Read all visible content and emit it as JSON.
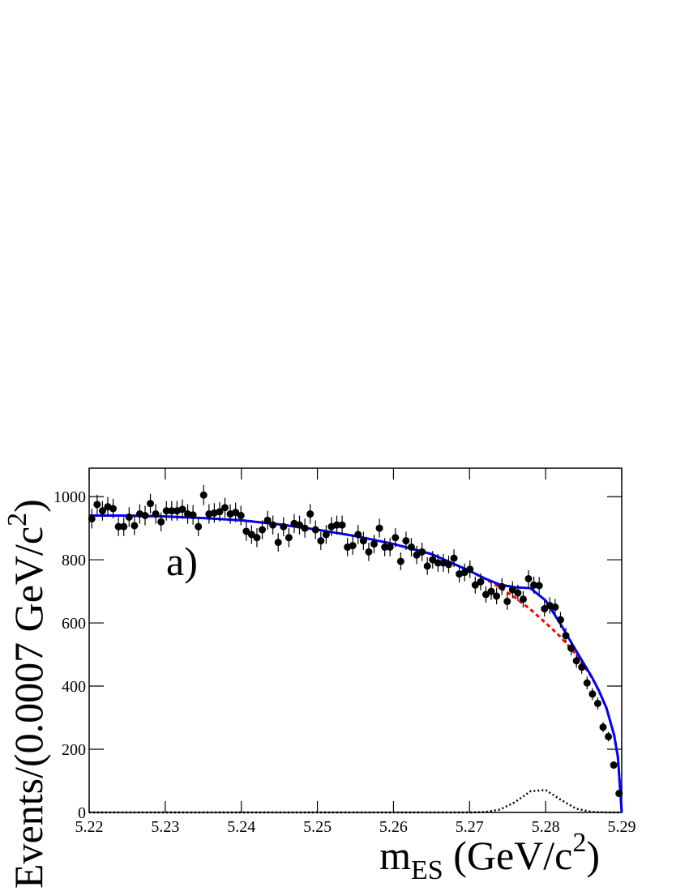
{
  "chart_data": {
    "type": "errorbar",
    "annotation": "a)",
    "y_label": {
      "text": "Events/(0.0007 GeV/c",
      "sup": "2",
      "end": ")"
    },
    "x_label": {
      "text": "m",
      "sub": "ES",
      "rest": " (GeV/c",
      "sup": "2",
      "end": ")"
    },
    "xlim": [
      5.22,
      5.29
    ],
    "xticks": [
      5.22,
      5.23,
      5.24,
      5.25,
      5.26,
      5.27,
      5.28,
      5.29
    ],
    "ylim": [
      0,
      1090
    ],
    "yticks": [
      0,
      200,
      400,
      600,
      800,
      1000
    ],
    "points": {
      "color": "#000000",
      "x": [
        5.22035,
        5.22105,
        5.22175,
        5.22245,
        5.22315,
        5.22385,
        5.22455,
        5.22525,
        5.22595,
        5.22665,
        5.22735,
        5.22805,
        5.22875,
        5.22945,
        5.23015,
        5.23085,
        5.23155,
        5.23225,
        5.23295,
        5.23365,
        5.23435,
        5.23505,
        5.23575,
        5.23645,
        5.23715,
        5.23785,
        5.23855,
        5.23925,
        5.23995,
        5.24065,
        5.24135,
        5.24205,
        5.24275,
        5.24345,
        5.24415,
        5.24485,
        5.24555,
        5.24625,
        5.24695,
        5.24765,
        5.24835,
        5.24905,
        5.24975,
        5.25045,
        5.25115,
        5.25185,
        5.25255,
        5.25325,
        5.25395,
        5.25465,
        5.25535,
        5.25605,
        5.25675,
        5.25745,
        5.25815,
        5.25885,
        5.25955,
        5.26025,
        5.26095,
        5.26165,
        5.26235,
        5.26305,
        5.26375,
        5.26445,
        5.26515,
        5.26585,
        5.26655,
        5.26725,
        5.26795,
        5.26865,
        5.26935,
        5.27005,
        5.27075,
        5.27145,
        5.27215,
        5.27285,
        5.27355,
        5.27425,
        5.27495,
        5.27565,
        5.27635,
        5.27705,
        5.27775,
        5.27845,
        5.27915,
        5.27985,
        5.28055,
        5.28125,
        5.28195,
        5.28265,
        5.28335,
        5.28405,
        5.28475,
        5.28545,
        5.28615,
        5.28685,
        5.28755,
        5.28825,
        5.28895,
        5.28965
      ],
      "values": [
        930,
        975,
        955,
        968,
        962,
        905,
        905,
        935,
        908,
        945,
        940,
        978,
        945,
        920,
        955,
        955,
        955,
        960,
        945,
        942,
        905,
        1005,
        945,
        948,
        952,
        965,
        945,
        950,
        940,
        890,
        880,
        870,
        895,
        925,
        910,
        855,
        905,
        870,
        915,
        910,
        900,
        945,
        895,
        860,
        880,
        905,
        910,
        910,
        840,
        845,
        880,
        860,
        825,
        850,
        900,
        840,
        840,
        870,
        795,
        860,
        840,
        815,
        825,
        780,
        800,
        790,
        790,
        785,
        805,
        755,
        760,
        770,
        720,
        730,
        690,
        700,
        685,
        715,
        668,
        705,
        695,
        675,
        740,
        720,
        718,
        645,
        655,
        650,
        610,
        560,
        520,
        480,
        460,
        410,
        375,
        345,
        270,
        240,
        150,
        60
      ],
      "errors": [
        31,
        31,
        31,
        31,
        31,
        30,
        30,
        31,
        30,
        31,
        31,
        31,
        31,
        30,
        31,
        31,
        31,
        31,
        31,
        31,
        30,
        32,
        31,
        31,
        31,
        31,
        31,
        31,
        31,
        30,
        30,
        30,
        30,
        30,
        30,
        29,
        30,
        30,
        30,
        30,
        30,
        31,
        30,
        29,
        30,
        30,
        30,
        30,
        29,
        29,
        30,
        29,
        29,
        29,
        30,
        29,
        29,
        30,
        28,
        29,
        29,
        29,
        29,
        28,
        28,
        28,
        28,
        28,
        28,
        27,
        28,
        28,
        27,
        27,
        26,
        27,
        26,
        27,
        26,
        27,
        26,
        26,
        27,
        27,
        27,
        25,
        26,
        26,
        25,
        24,
        23,
        22,
        21,
        20,
        19,
        19,
        16,
        15,
        12,
        8
      ]
    },
    "series": [
      {
        "type": "line",
        "color": "#ff0000",
        "dash": "5 4",
        "width": 3,
        "x": [
          5.22,
          5.225,
          5.23,
          5.235,
          5.24,
          5.245,
          5.25,
          5.255,
          5.26,
          5.265,
          5.27,
          5.272,
          5.274,
          5.276,
          5.278,
          5.28,
          5.282,
          5.284,
          5.286,
          5.287,
          5.288,
          5.289,
          5.2895,
          5.29
        ],
        "values": [
          940,
          940,
          937,
          932,
          925,
          912,
          895,
          875,
          850,
          818,
          765,
          740,
          712,
          680,
          643,
          600,
          555,
          500,
          430,
          385,
          330,
          245,
          175,
          0
        ]
      },
      {
        "type": "line",
        "color": "#000000",
        "dash": "2 3",
        "width": 2.5,
        "x": [
          5.22,
          5.225,
          5.23,
          5.235,
          5.24,
          5.245,
          5.25,
          5.255,
          5.26,
          5.265,
          5.27,
          5.272,
          5.274,
          5.276,
          5.278,
          5.28,
          5.282,
          5.284,
          5.286,
          5.287,
          5.288,
          5.289,
          5.2895,
          5.29
        ],
        "values": [
          0,
          0,
          0,
          0,
          0,
          0,
          0,
          0,
          0,
          0,
          0,
          1,
          9,
          33,
          67,
          71,
          40,
          12,
          2,
          1,
          0,
          0,
          0,
          0
        ]
      },
      {
        "type": "line",
        "color": "#0000ff",
        "dash": "none",
        "width": 3,
        "x": [
          5.22,
          5.225,
          5.23,
          5.235,
          5.24,
          5.245,
          5.25,
          5.255,
          5.26,
          5.265,
          5.27,
          5.272,
          5.274,
          5.276,
          5.278,
          5.28,
          5.282,
          5.284,
          5.286,
          5.287,
          5.288,
          5.289,
          5.2895,
          5.29
        ],
        "values": [
          940,
          940,
          937,
          932,
          925,
          912,
          895,
          875,
          850,
          818,
          765,
          741,
          721,
          713,
          710,
          671,
          595,
          512,
          432,
          386,
          330,
          245,
          175,
          0
        ]
      }
    ]
  }
}
